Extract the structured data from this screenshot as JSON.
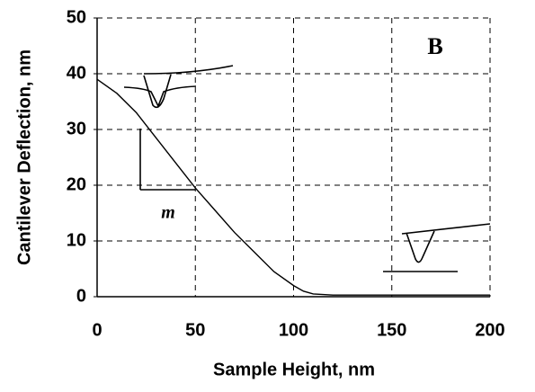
{
  "chart_data": {
    "type": "line",
    "annotations": [
      "B",
      "m"
    ],
    "x_label": "Sample Height, nm",
    "y_label": "Cantilever Deflection, nm",
    "x": [
      0,
      10,
      20,
      30,
      40,
      50,
      60,
      70,
      80,
      90,
      100,
      105,
      110,
      120,
      150,
      200
    ],
    "series": [
      {
        "color": "#000000",
        "values": [
          39,
          36.5,
          33,
          28.5,
          24,
          19.5,
          15.5,
          11.5,
          8,
          4.5,
          2,
          1,
          0.5,
          0.3,
          0.3,
          0.3
        ]
      }
    ],
    "xlim": [
      0,
      200
    ],
    "xticks": [
      0,
      50,
      100,
      150,
      200
    ],
    "ylim": [
      0,
      50
    ],
    "yticks": [
      0,
      10,
      20,
      30,
      40,
      50
    ],
    "grid": true
  }
}
